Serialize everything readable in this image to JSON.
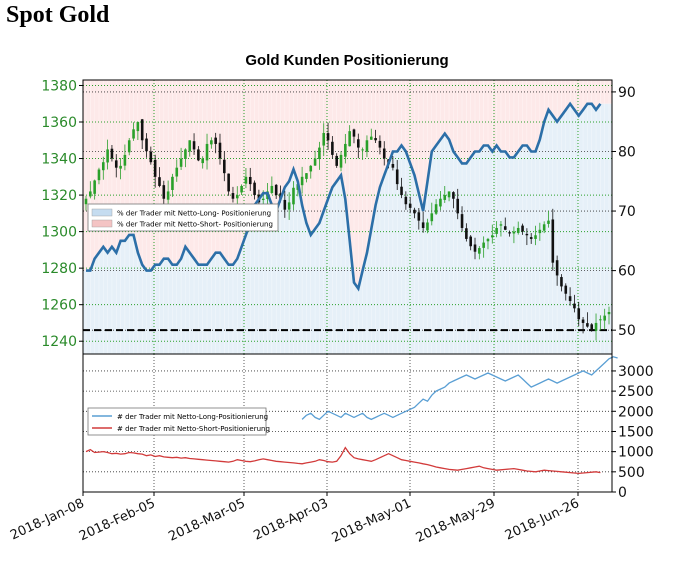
{
  "page": {
    "title": "Spot Gold"
  },
  "chart_data": {
    "type": "line",
    "title": "Gold Kunden Positionierung",
    "x_tick_labels": [
      "2018-Jan-08",
      "2018-Feb-05",
      "2018-Mar-05",
      "2018-Apr-03",
      "2018-May-01",
      "2018-May-29",
      "2018-Jun-26"
    ],
    "top_panel": {
      "left_axis": {
        "ticks": [
          1240,
          1260,
          1280,
          1300,
          1320,
          1340,
          1360,
          1380
        ],
        "ylim": [
          1233,
          1383
        ]
      },
      "right_axis": {
        "ticks": [
          50,
          60,
          70,
          80,
          90
        ],
        "ylim": [
          46,
          92
        ]
      },
      "reference_line_pct": 50,
      "legend": [
        {
          "label": "% der Trader mit Netto-Long- Positionierung",
          "color": "#c5dcf0"
        },
        {
          "label": "% der Trader mit Netto-Short- Positionierung",
          "color": "#f4c4c4"
        }
      ],
      "price_series": {
        "name": "Spot Gold (Candlestick)",
        "close": [
          1318,
          1322,
          1328,
          1334,
          1338,
          1345,
          1340,
          1335,
          1336,
          1342,
          1350,
          1356,
          1360,
          1350,
          1344,
          1338,
          1330,
          1325,
          1318,
          1322,
          1330,
          1335,
          1340,
          1345,
          1350,
          1345,
          1339,
          1340,
          1348,
          1350,
          1348,
          1340,
          1332,
          1322,
          1318,
          1320,
          1325,
          1330,
          1326,
          1320,
          1316,
          1318,
          1322,
          1325,
          1320,
          1318,
          1312,
          1316,
          1324,
          1326,
          1330,
          1332,
          1336,
          1340,
          1346,
          1354,
          1350,
          1342,
          1336,
          1342,
          1348,
          1355,
          1352,
          1346,
          1345,
          1350,
          1352,
          1350,
          1346,
          1340,
          1337,
          1335,
          1326,
          1320,
          1315,
          1313,
          1310,
          1306,
          1302,
          1305,
          1310,
          1315,
          1318,
          1320,
          1322,
          1318,
          1310,
          1302,
          1296,
          1292,
          1289,
          1291,
          1294,
          1296,
          1298,
          1302,
          1304,
          1301,
          1299,
          1300,
          1302,
          1300,
          1298,
          1296,
          1298,
          1301,
          1304,
          1306,
          1283,
          1276,
          1270,
          1266,
          1262,
          1258,
          1252,
          1250,
          1248,
          1246,
          1250,
          1252,
          1254,
          1256
        ],
        "volatility": 6
      },
      "long_pct_series": {
        "name": "% der Trader mit Netto-Long- Positionierung",
        "color": "#2c6fa8",
        "values": [
          60,
          60,
          62,
          63,
          64,
          63,
          64,
          63,
          65,
          65,
          66,
          66,
          63,
          61,
          60,
          60,
          61,
          61,
          62,
          62,
          61,
          61,
          62,
          64,
          63,
          62,
          61,
          61,
          61,
          62,
          63,
          63,
          62,
          61,
          61,
          62,
          64,
          66,
          68,
          71,
          72,
          73,
          73,
          71,
          70,
          72,
          74,
          75,
          77,
          75,
          71,
          68,
          66,
          67,
          68,
          70,
          72,
          74,
          75,
          76,
          72,
          65,
          58,
          57,
          60,
          63,
          67,
          71,
          74,
          76,
          78,
          80,
          80,
          81,
          80,
          78,
          76,
          73,
          70,
          75,
          80,
          81,
          82,
          83,
          82,
          80,
          79,
          78,
          78,
          79,
          80,
          80,
          81,
          81,
          80,
          81,
          80,
          80,
          79,
          79,
          80,
          81,
          81,
          80,
          80,
          82,
          85,
          87,
          86,
          85,
          86,
          87,
          88,
          87,
          86,
          87,
          88,
          88,
          87,
          88
        ],
        "ylim_ref": "right_axis"
      }
    },
    "bottom_panel": {
      "right_axis": {
        "ticks": [
          0,
          500,
          1000,
          1500,
          2000,
          2500,
          3000
        ],
        "ylim": [
          0,
          3420
        ]
      },
      "legend": [
        {
          "label": "# der Trader mit Netto-Long-Positionierung",
          "color": "#5a9fd4"
        },
        {
          "label": "# der Trader mit Netto-Short-Positionierung",
          "color": "#d23b3b"
        }
      ],
      "long_count_series": {
        "name": "# der Trader mit Netto-Long-Positionierung",
        "color": "#5a9fd4",
        "start_index": 50,
        "values": [
          1800,
          1900,
          1950,
          1850,
          1800,
          1900,
          2000,
          1950,
          1900,
          1850,
          1950,
          1900,
          1850,
          1900,
          1950,
          1850,
          1800,
          1850,
          1900,
          1950,
          1900,
          1850,
          1900,
          1950,
          2000,
          2050,
          2100,
          2200,
          2300,
          2250,
          2400,
          2500,
          2550,
          2600,
          2700,
          2750,
          2800,
          2850,
          2900,
          2850,
          2800,
          2850,
          2900,
          2950,
          2900,
          2850,
          2800,
          2750,
          2800,
          2850,
          2900,
          2800,
          2700,
          2600,
          2650,
          2700,
          2750,
          2800,
          2750,
          2700,
          2750,
          2800,
          2850,
          2900,
          2950,
          3000,
          2950,
          2900,
          3000,
          3100,
          3200,
          3300,
          3350,
          3320
        ],
        "ylim_ref": "bottom_panel.right_axis"
      },
      "short_count_series": {
        "name": "# der Trader mit Netto-Short-Positionierung",
        "color": "#d23b3b",
        "values": [
          1000,
          1050,
          980,
          990,
          1000,
          980,
          950,
          960,
          940,
          950,
          980,
          970,
          950,
          940,
          900,
          920,
          880,
          900,
          870,
          860,
          850,
          860,
          840,
          850,
          830,
          820,
          810,
          800,
          790,
          780,
          770,
          760,
          750,
          740,
          760,
          800,
          780,
          760,
          750,
          770,
          800,
          820,
          800,
          780,
          760,
          750,
          740,
          730,
          720,
          710,
          700,
          720,
          740,
          760,
          800,
          780,
          750,
          740,
          760,
          900,
          1100,
          950,
          850,
          820,
          800,
          780,
          760,
          800,
          850,
          900,
          950,
          900,
          850,
          800,
          780,
          760,
          740,
          720,
          700,
          680,
          650,
          620,
          600,
          580,
          560,
          550,
          540,
          560,
          580,
          600,
          620,
          640,
          600,
          580,
          560,
          540,
          550,
          560,
          570,
          580,
          560,
          540,
          520,
          510,
          500,
          520,
          540,
          530,
          520,
          510,
          500,
          490,
          480,
          470,
          460,
          470,
          480,
          490,
          500,
          480
        ],
        "ylim_ref": "bottom_panel.right_axis"
      }
    }
  }
}
